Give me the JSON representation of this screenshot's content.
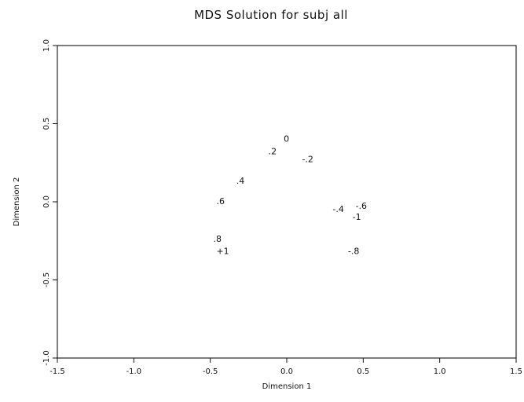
{
  "chart_data": {
    "type": "scatter",
    "title": "MDS Solution for subj all",
    "xlabel": "Dimension 1",
    "ylabel": "Dimension 2",
    "xlim": [
      -1.5,
      1.5
    ],
    "ylim": [
      -1.0,
      1.0
    ],
    "x_ticks": [
      "-1.5",
      "-1.0",
      "-0.5",
      "0.0",
      "0.5",
      "1.0",
      "1.5"
    ],
    "y_ticks": [
      "-1.0",
      "-0.5",
      "0.0",
      "0.5",
      "1.0"
    ],
    "grid": false,
    "marker": "text-labels",
    "points": [
      {
        "label": "0",
        "x": -0.02,
        "y": 0.4
      },
      {
        "label": ".2",
        "x": -0.12,
        "y": 0.32
      },
      {
        "label": "-.2",
        "x": 0.1,
        "y": 0.27
      },
      {
        "label": ".4",
        "x": -0.33,
        "y": 0.13
      },
      {
        "label": ".6",
        "x": -0.46,
        "y": 0.0
      },
      {
        "label": "-.4",
        "x": 0.3,
        "y": -0.05
      },
      {
        "label": "-.6",
        "x": 0.45,
        "y": -0.03
      },
      {
        "label": "-1",
        "x": 0.43,
        "y": -0.1
      },
      {
        "label": ".8",
        "x": -0.48,
        "y": -0.24
      },
      {
        "label": "+1",
        "x": -0.46,
        "y": -0.32
      },
      {
        "label": "-.8",
        "x": 0.4,
        "y": -0.32
      }
    ]
  }
}
